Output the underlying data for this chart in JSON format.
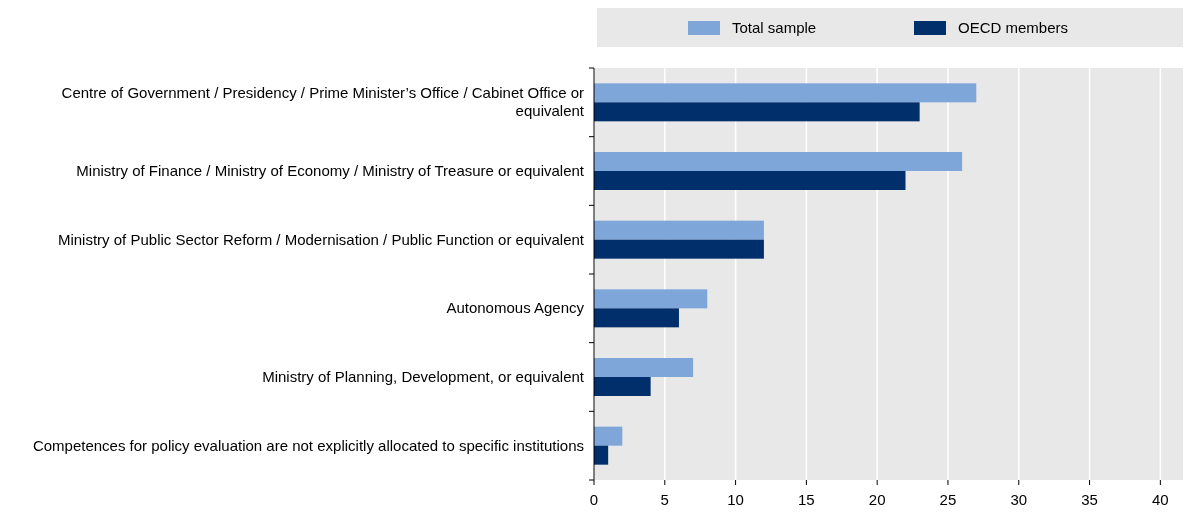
{
  "chart_data": {
    "type": "bar",
    "orientation": "horizontal",
    "categories": [
      "Centre of Government / Presidency / Prime Minister’s Office / Cabinet Office or equivalent",
      "Ministry of Finance / Ministry of Economy / Ministry of Treasure or equivalent",
      "Ministry of Public Sector Reform / Modernisation / Public Function or equivalent",
      "Autonomous Agency",
      "Ministry of Planning, Development, or equivalent",
      "Competences for policy evaluation are not explicitly allocated to specific institutions"
    ],
    "series": [
      {
        "name": "Total sample",
        "color": "#7ea6d9",
        "values": [
          27,
          26,
          12,
          8,
          7,
          2
        ]
      },
      {
        "name": "OECD members",
        "color": "#002f6c",
        "values": [
          23,
          22,
          12,
          6,
          4,
          1
        ]
      }
    ],
    "xlim": [
      0,
      41.6
    ],
    "xticks": [
      0,
      5,
      10,
      15,
      20,
      25,
      30,
      35,
      40
    ],
    "grid": "x",
    "legend": "top"
  }
}
